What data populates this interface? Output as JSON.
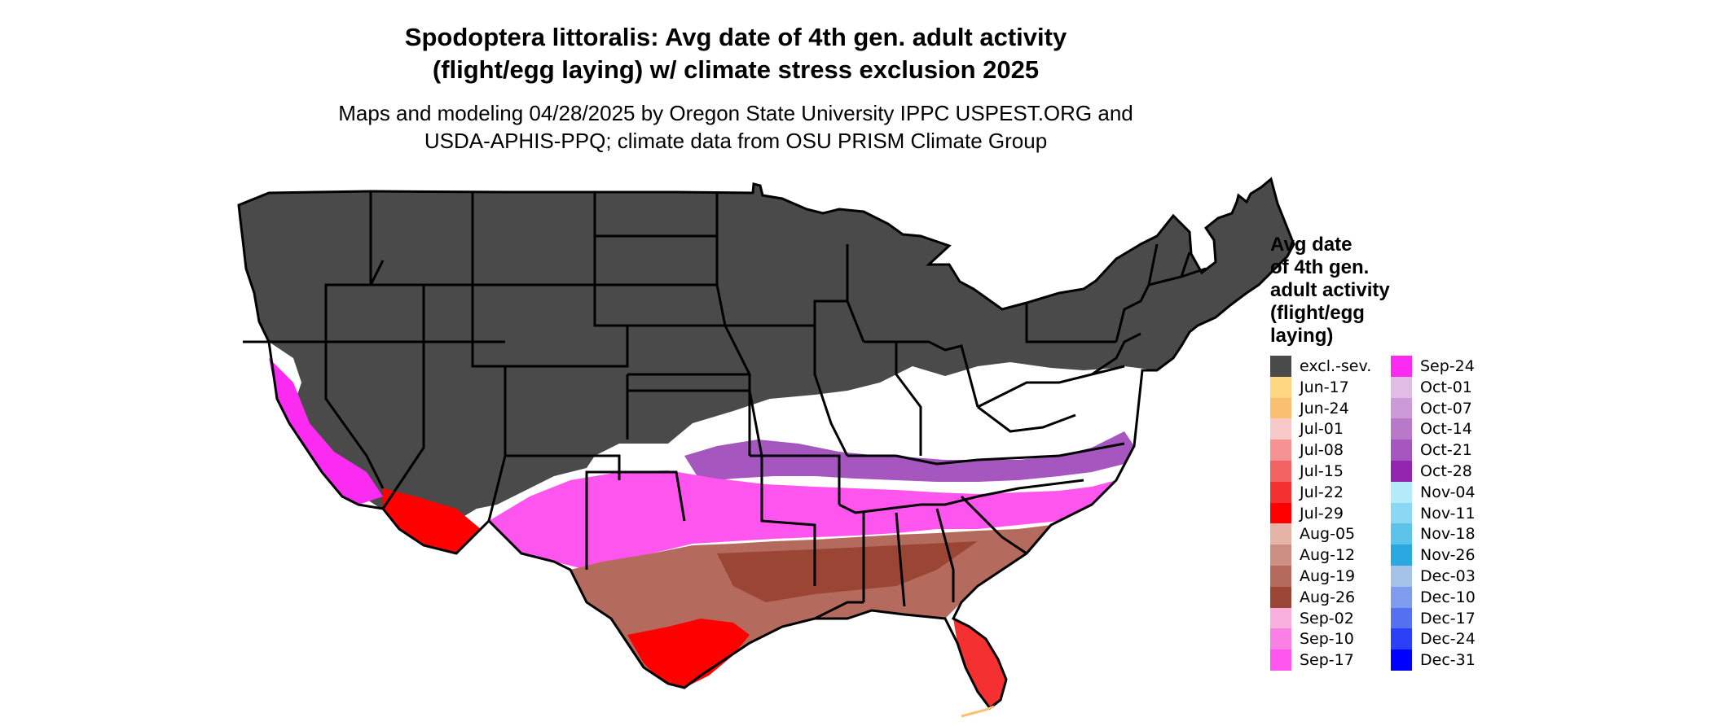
{
  "title": {
    "line1": "Spodoptera littoralis: Avg date of 4th gen. adult activity",
    "line2": "(flight/egg laying) w/ climate stress exclusion 2025"
  },
  "subtitle": {
    "line1": "Maps and modeling 04/28/2025 by Oregon State University IPPC USPEST.ORG and",
    "line2": "USDA-APHIS-PPQ; climate data from OSU PRISM Climate Group"
  },
  "legend": {
    "title_lines": [
      "Avg date",
      "of 4th gen.",
      "adult activity",
      "(flight/egg",
      "laying)"
    ],
    "entries": [
      {
        "label": "excl.-sev.",
        "color": "#4a4a4a"
      },
      {
        "label": "Jun-17",
        "color": "#fed580"
      },
      {
        "label": "Jun-24",
        "color": "#fbbf70"
      },
      {
        "label": "Jul-01",
        "color": "#f8c9c9"
      },
      {
        "label": "Jul-08",
        "color": "#f59393"
      },
      {
        "label": "Jul-15",
        "color": "#f36262"
      },
      {
        "label": "Jul-22",
        "color": "#f53030"
      },
      {
        "label": "Jul-29",
        "color": "#ff0000"
      },
      {
        "label": "Aug-05",
        "color": "#e6b4a6"
      },
      {
        "label": "Aug-12",
        "color": "#cd8f81"
      },
      {
        "label": "Aug-19",
        "color": "#b46a5d"
      },
      {
        "label": "Aug-26",
        "color": "#9b4535"
      },
      {
        "label": "Sep-02",
        "color": "#f9b0dc"
      },
      {
        "label": "Sep-10",
        "color": "#fb80e6"
      },
      {
        "label": "Sep-17",
        "color": "#fd55ee"
      },
      {
        "label": "Sep-24",
        "color": "#fc2bf2"
      },
      {
        "label": "Oct-01",
        "color": "#e1bde6"
      },
      {
        "label": "Oct-07",
        "color": "#cd9ad8"
      },
      {
        "label": "Oct-14",
        "color": "#b979cb"
      },
      {
        "label": "Oct-21",
        "color": "#a556bf"
      },
      {
        "label": "Oct-28",
        "color": "#9226ae"
      },
      {
        "label": "Nov-04",
        "color": "#b3ebfb"
      },
      {
        "label": "Nov-11",
        "color": "#8ad8f3"
      },
      {
        "label": "Nov-18",
        "color": "#5ec3ea"
      },
      {
        "label": "Nov-26",
        "color": "#29a9e0"
      },
      {
        "label": "Dec-03",
        "color": "#a5c3e9"
      },
      {
        "label": "Dec-10",
        "color": "#7f9cee"
      },
      {
        "label": "Dec-17",
        "color": "#5570f1"
      },
      {
        "label": "Dec-24",
        "color": "#2a3ff6"
      },
      {
        "label": "Dec-31",
        "color": "#0000ff"
      }
    ]
  }
}
